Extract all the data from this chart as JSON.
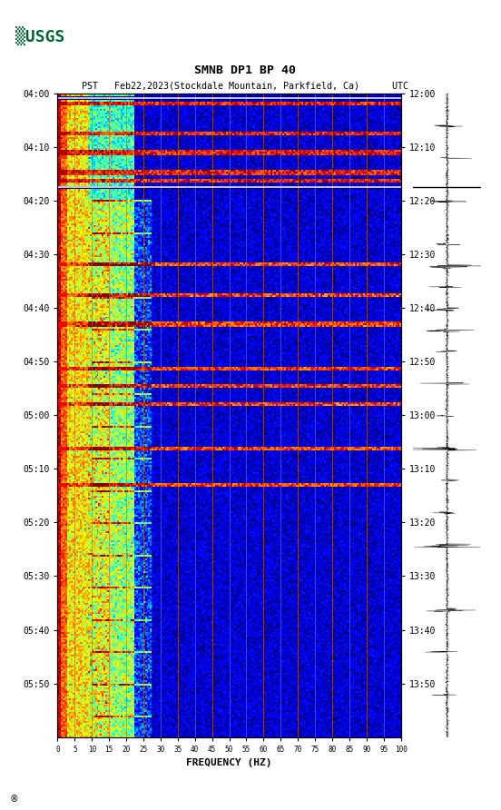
{
  "title_line1": "SMNB DP1 BP 40",
  "title_line2": "PST   Feb22,2023(Stockdale Mountain, Parkfield, Ca)      UTC",
  "xlabel": "FREQUENCY (HZ)",
  "freq_ticks": [
    0,
    5,
    10,
    15,
    20,
    25,
    30,
    35,
    40,
    45,
    50,
    55,
    60,
    65,
    70,
    75,
    80,
    85,
    90,
    95,
    100
  ],
  "left_time_labels": [
    "04:00",
    "04:10",
    "04:20",
    "04:30",
    "04:40",
    "04:50",
    "05:00",
    "05:10",
    "05:20",
    "05:30",
    "05:40",
    "05:50"
  ],
  "right_time_labels": [
    "12:00",
    "12:10",
    "12:20",
    "12:30",
    "12:40",
    "12:50",
    "13:00",
    "13:10",
    "13:20",
    "13:30",
    "13:40",
    "13:50"
  ],
  "freq_min": 0,
  "freq_max": 100,
  "n_time": 360,
  "n_freq": 200,
  "figure_bg": "#ffffff",
  "usgs_color": "#006633",
  "vertical_line_freqs": [
    5,
    10,
    15,
    20,
    25,
    30,
    35,
    40,
    45,
    50,
    55,
    60,
    65,
    70,
    75,
    80,
    85,
    90,
    95,
    100
  ],
  "vertical_line_color": "#cc6600"
}
